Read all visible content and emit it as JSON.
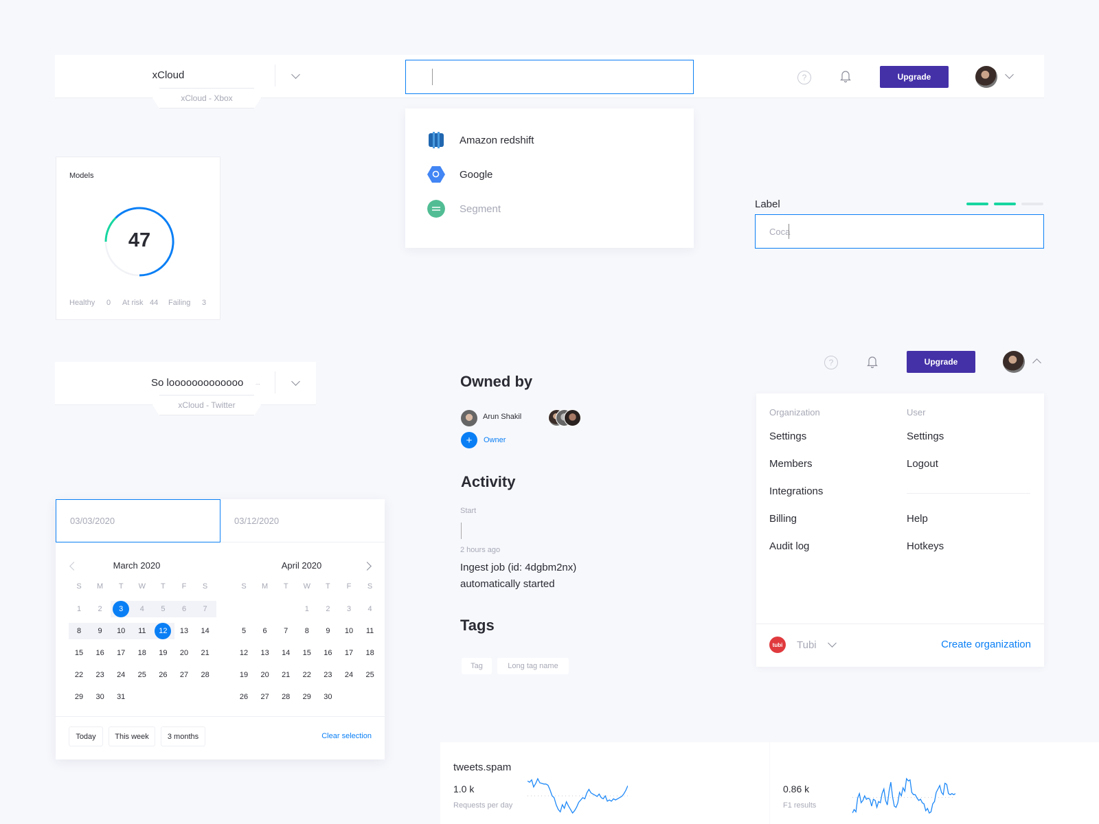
{
  "colors": {
    "accent": "#0a7ff5",
    "upgrade": "#4431a8",
    "green": "#17d6a0",
    "tubi": "#e03a3e"
  },
  "header1": {
    "title": "xCloud",
    "breadcrumb": "xCloud - Xbox",
    "search_value": "",
    "upgrade_label": "Upgrade",
    "help_icon": "?",
    "icons": [
      "help-icon",
      "bell-icon",
      "avatar",
      "chevron-down-icon"
    ]
  },
  "search_dropdown": {
    "items": [
      {
        "label": "Amazon redshift",
        "icon": "amazon-redshift-icon"
      },
      {
        "label": "Google",
        "icon": "google-bigquery-icon"
      },
      {
        "label": "Segment",
        "icon": "segment-icon",
        "disabled": true
      }
    ]
  },
  "label_field": {
    "label": "Label",
    "value": "Coca",
    "steps_total": 3,
    "steps_done": 2
  },
  "models": {
    "title": "Models",
    "total": "47",
    "stats": [
      {
        "label": "Healthy",
        "value": "0"
      },
      {
        "label": "At risk",
        "value": "44"
      },
      {
        "label": "Failing",
        "value": "3"
      }
    ]
  },
  "header2": {
    "title": "So looooooooooooo",
    "ellipsis": "...",
    "breadcrumb": "xCloud - Twitter"
  },
  "owned": {
    "title": "Owned by",
    "owner_name": "Arun Shakil",
    "owner_button": "Owner",
    "activity_title": "Activity",
    "start_label": "Start",
    "time": "2 hours ago",
    "event_line1": "Ingest job (id: 4dgbm2nx)",
    "event_line2": "automatically started",
    "tags_title": "Tags",
    "tags": [
      "Tag",
      "Long tag name"
    ]
  },
  "account": {
    "upgrade_label": "Upgrade",
    "help_icon": "?",
    "org_heading": "Organization",
    "user_heading": "User",
    "org_items": [
      "Settings",
      "Members",
      "Integrations",
      "Billing",
      "Audit log"
    ],
    "user_items": [
      "Settings",
      "Logout"
    ],
    "user_items2": [
      "Help",
      "Hotkeys"
    ],
    "org_name": "Tubi",
    "org_logo": "tubi",
    "create_org": "Create organization"
  },
  "datepicker": {
    "start": "03/03/2020",
    "end": "03/12/2020",
    "weekdays": [
      "S",
      "M",
      "T",
      "W",
      "T",
      "F",
      "S"
    ],
    "months": [
      {
        "label": "March 2020",
        "offset": 0,
        "days": 31
      },
      {
        "label": "April 2020",
        "offset": 3,
        "days": 30
      }
    ],
    "selected_start": 3,
    "selected_end": 12,
    "presets": [
      "Today",
      "This week",
      "3 months"
    ],
    "clear": "Clear selection"
  },
  "metrics": [
    {
      "title": "tweets.spam",
      "value": "1.0 k",
      "caption": "Requests per day",
      "series": [
        70,
        68,
        72,
        60,
        66,
        74,
        67,
        66,
        65,
        65,
        63,
        55,
        45,
        42,
        30,
        22,
        18,
        30,
        24,
        35,
        28,
        22,
        16,
        20,
        26,
        34,
        38,
        42,
        40,
        50,
        56,
        50,
        48,
        46,
        44,
        48,
        42,
        40,
        45,
        36,
        38,
        36,
        40,
        38,
        40,
        42,
        44,
        48,
        54,
        62
      ]
    },
    {
      "title": "",
      "value": "0.86 k",
      "caption": "F1 results",
      "series": [
        18,
        24,
        20,
        44,
        52,
        36,
        40,
        48,
        42,
        44,
        42,
        30,
        42,
        40,
        28,
        38,
        36,
        52,
        60,
        40,
        32,
        56,
        72,
        46,
        30,
        28,
        36,
        54,
        48,
        62,
        56,
        78,
        74,
        76,
        54,
        50,
        50,
        44,
        40,
        42,
        36,
        34,
        22,
        26,
        18,
        20,
        34,
        38,
        54,
        60,
        66,
        54,
        50,
        70,
        68,
        52,
        50,
        52,
        50,
        52
      ]
    }
  ]
}
